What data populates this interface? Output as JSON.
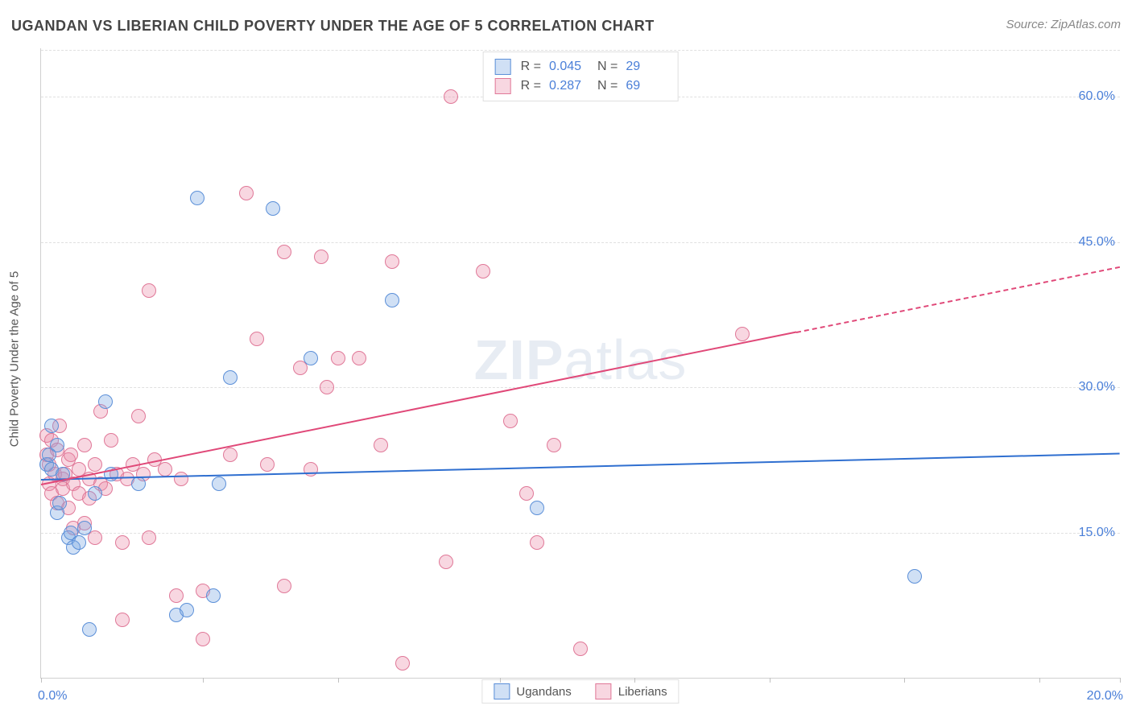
{
  "title": "UGANDAN VS LIBERIAN CHILD POVERTY UNDER THE AGE OF 5 CORRELATION CHART",
  "source_label": "Source: ZipAtlas.com",
  "watermark": "ZIPatlas",
  "ylabel": "Child Poverty Under the Age of 5",
  "chart": {
    "type": "scatter",
    "xlim": [
      0,
      20
    ],
    "ylim": [
      0,
      65
    ],
    "xtick_positions": [
      0,
      3,
      5.5,
      8.5,
      11,
      13.5,
      16,
      18.5,
      20
    ],
    "xaxis_tick_labels": {
      "0": "0.0%",
      "20": "20.0%"
    },
    "ytick_positions": [
      15,
      30,
      45,
      60
    ],
    "yaxis_tick_labels": {
      "15": "15.0%",
      "30": "30.0%",
      "45": "45.0%",
      "60": "60.0%"
    },
    "background_color": "#ffffff",
    "grid_color": "#e0e0e0",
    "axis_label_color": "#4a7fd8",
    "marker_radius": 9,
    "marker_stroke_width": 1.5,
    "marker_fill_opacity": 0.35
  },
  "series": {
    "ugandans": {
      "label": "Ugandans",
      "color_stroke": "#5b8fd8",
      "color_fill": "rgba(120,165,225,0.35)",
      "R": "0.045",
      "N": "29",
      "trend": {
        "x1": 0,
        "y1": 20.5,
        "x2": 20,
        "y2": 23.2,
        "color": "#2f6fd0",
        "dash_from_x": null
      },
      "points": [
        [
          0.1,
          22.0
        ],
        [
          0.15,
          23.0
        ],
        [
          0.2,
          21.5
        ],
        [
          0.2,
          26.0
        ],
        [
          0.3,
          17.0
        ],
        [
          0.3,
          24.0
        ],
        [
          0.35,
          18.0
        ],
        [
          0.4,
          21.0
        ],
        [
          0.5,
          14.5
        ],
        [
          0.55,
          15.0
        ],
        [
          0.6,
          13.5
        ],
        [
          0.7,
          14.0
        ],
        [
          0.8,
          15.5
        ],
        [
          0.9,
          5.0
        ],
        [
          1.0,
          19.0
        ],
        [
          1.2,
          28.5
        ],
        [
          1.3,
          21.0
        ],
        [
          1.8,
          20.0
        ],
        [
          2.5,
          6.5
        ],
        [
          2.7,
          7.0
        ],
        [
          2.9,
          49.5
        ],
        [
          3.2,
          8.5
        ],
        [
          3.5,
          31.0
        ],
        [
          3.3,
          20.0
        ],
        [
          4.3,
          48.5
        ],
        [
          5.0,
          33.0
        ],
        [
          6.5,
          39.0
        ],
        [
          9.2,
          17.5
        ],
        [
          16.2,
          10.5
        ]
      ]
    },
    "liberians": {
      "label": "Liberians",
      "color_stroke": "#e07898",
      "color_fill": "rgba(235,140,170,0.35)",
      "R": "0.287",
      "N": "69",
      "trend": {
        "x1": 0,
        "y1": 20.0,
        "x2": 20,
        "y2": 42.5,
        "color": "#e04878",
        "dash_from_x": 14.0
      },
      "points": [
        [
          0.1,
          25.0
        ],
        [
          0.1,
          23.0
        ],
        [
          0.15,
          22.0
        ],
        [
          0.15,
          20.0
        ],
        [
          0.2,
          19.0
        ],
        [
          0.2,
          24.5
        ],
        [
          0.25,
          21.0
        ],
        [
          0.3,
          23.5
        ],
        [
          0.3,
          18.0
        ],
        [
          0.35,
          26.0
        ],
        [
          0.4,
          20.5
        ],
        [
          0.4,
          19.5
        ],
        [
          0.45,
          21.0
        ],
        [
          0.5,
          22.5
        ],
        [
          0.5,
          17.5
        ],
        [
          0.55,
          23.0
        ],
        [
          0.6,
          20.0
        ],
        [
          0.6,
          15.5
        ],
        [
          0.7,
          19.0
        ],
        [
          0.7,
          21.5
        ],
        [
          0.8,
          24.0
        ],
        [
          0.8,
          16.0
        ],
        [
          0.9,
          20.5
        ],
        [
          0.9,
          18.5
        ],
        [
          1.0,
          22.0
        ],
        [
          1.0,
          14.5
        ],
        [
          1.1,
          20.0
        ],
        [
          1.1,
          27.5
        ],
        [
          1.2,
          19.5
        ],
        [
          1.3,
          24.5
        ],
        [
          1.4,
          21.0
        ],
        [
          1.5,
          14.0
        ],
        [
          1.5,
          6.0
        ],
        [
          1.6,
          20.5
        ],
        [
          1.7,
          22.0
        ],
        [
          1.8,
          27.0
        ],
        [
          1.9,
          21.0
        ],
        [
          2.0,
          40.0
        ],
        [
          2.0,
          14.5
        ],
        [
          2.1,
          22.5
        ],
        [
          2.3,
          21.5
        ],
        [
          2.5,
          8.5
        ],
        [
          2.6,
          20.5
        ],
        [
          3.0,
          4.0
        ],
        [
          3.0,
          9.0
        ],
        [
          3.5,
          23.0
        ],
        [
          3.8,
          50.0
        ],
        [
          4.0,
          35.0
        ],
        [
          4.2,
          22.0
        ],
        [
          4.5,
          44.0
        ],
        [
          4.5,
          9.5
        ],
        [
          4.8,
          32.0
        ],
        [
          5.0,
          21.5
        ],
        [
          5.2,
          43.5
        ],
        [
          5.3,
          30.0
        ],
        [
          5.5,
          33.0
        ],
        [
          5.9,
          33.0
        ],
        [
          6.3,
          24.0
        ],
        [
          6.5,
          43.0
        ],
        [
          6.7,
          1.5
        ],
        [
          7.5,
          12.0
        ],
        [
          7.6,
          60.0
        ],
        [
          8.2,
          42.0
        ],
        [
          8.7,
          26.5
        ],
        [
          9.0,
          19.0
        ],
        [
          9.2,
          14.0
        ],
        [
          9.5,
          24.0
        ],
        [
          10.0,
          3.0
        ],
        [
          13.0,
          35.5
        ]
      ]
    }
  },
  "legend_top": {
    "stat1_label": "R =",
    "stat2_label": "N ="
  }
}
